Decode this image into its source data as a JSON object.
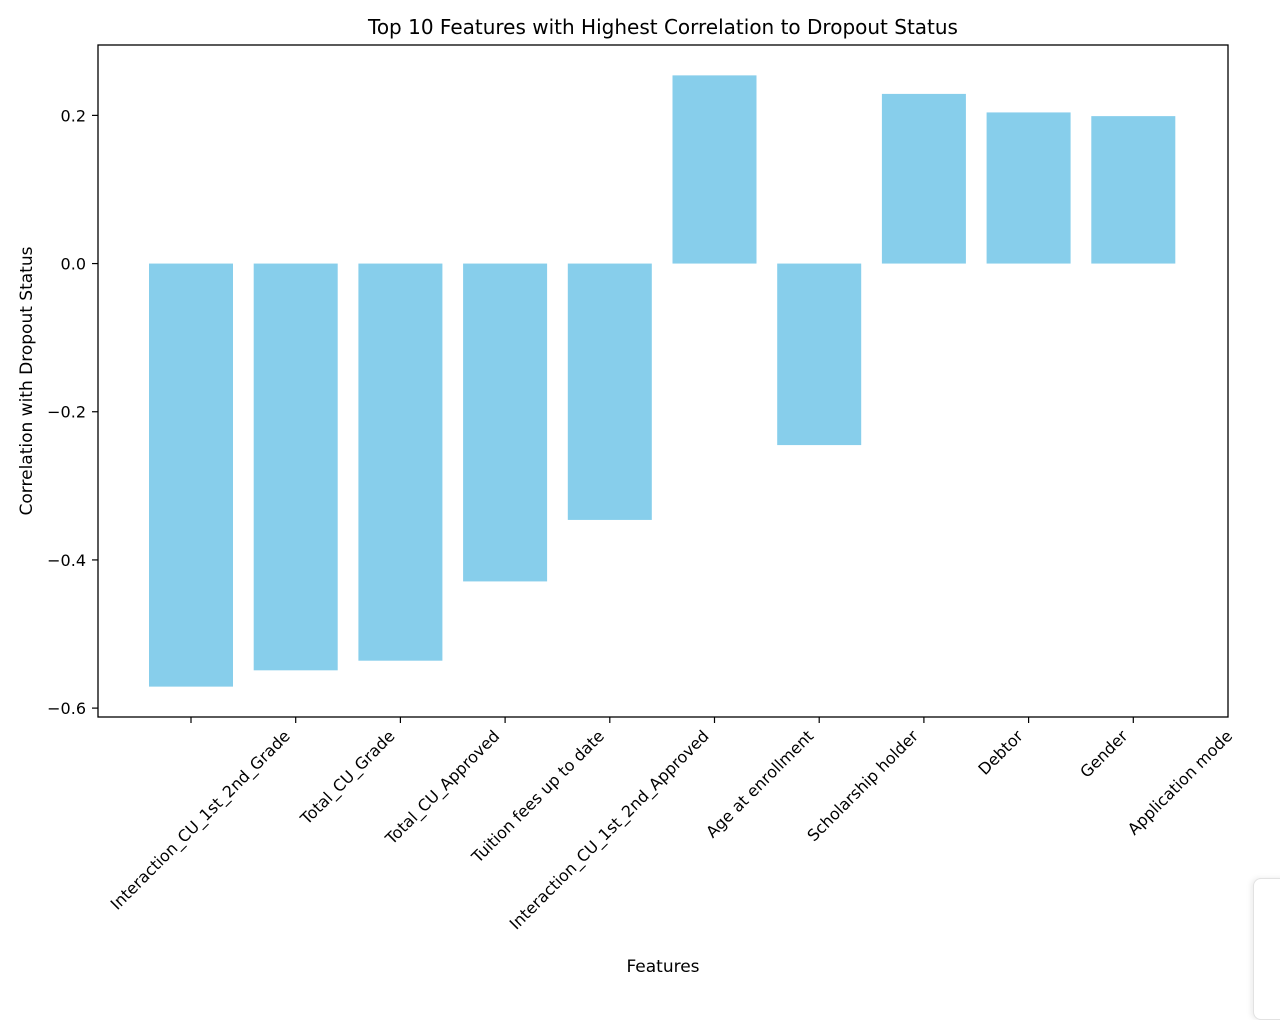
{
  "chart_data": {
    "type": "bar",
    "title": "Top 10 Features with Highest Correlation to Dropout Status",
    "xlabel": "Features",
    "ylabel": "Correlation with Dropout Status",
    "categories": [
      "Interaction_CU_1st_2nd_Grade",
      "Total_CU_Grade",
      "Total_CU_Approved",
      "Tuition fees up to date",
      "Interaction_CU_1st_2nd_Approved",
      "Age at enrollment",
      "Scholarship holder",
      "Debtor",
      "Gender",
      "Application mode"
    ],
    "values": [
      -0.571,
      -0.549,
      -0.536,
      -0.429,
      -0.346,
      0.254,
      -0.245,
      0.229,
      0.204,
      0.199
    ],
    "ylim": [
      -0.612,
      0.295
    ],
    "yticks": [
      -0.6,
      -0.4,
      -0.2,
      0.0,
      0.2
    ],
    "ytick_labels": [
      "−0.6",
      "−0.4",
      "−0.2",
      "0.0",
      "0.2"
    ],
    "bar_color": "#87CEEB",
    "grid": false
  }
}
